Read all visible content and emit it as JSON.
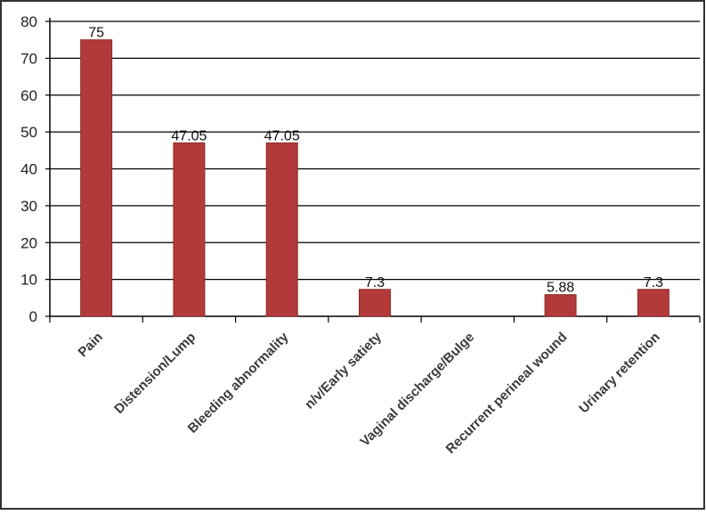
{
  "chart_data": {
    "type": "bar",
    "categories": [
      "Pain",
      "Distension/Lump",
      "Bleeding abnormality",
      "n/v/Early satiety",
      "Vaginal discharge/Bulge",
      "Recurrent perineal wound",
      "Urinary retention"
    ],
    "values": [
      75,
      47.05,
      47.05,
      7.3,
      0,
      5.88,
      7.3
    ],
    "data_labels": [
      "75",
      "47.05",
      "47.05",
      "7.3",
      "",
      "5.88",
      "7.3"
    ],
    "title": "",
    "xlabel": "",
    "ylabel": "",
    "ylim": [
      0,
      80
    ],
    "yticks": [
      0,
      10,
      20,
      30,
      40,
      50,
      60,
      70,
      80
    ],
    "grid": "horizontal",
    "legend": "none",
    "colors": {
      "bar": "#b23a3a",
      "bar_edge": "#8e2a2a",
      "grid": "#000000",
      "frame": "#333333"
    }
  }
}
